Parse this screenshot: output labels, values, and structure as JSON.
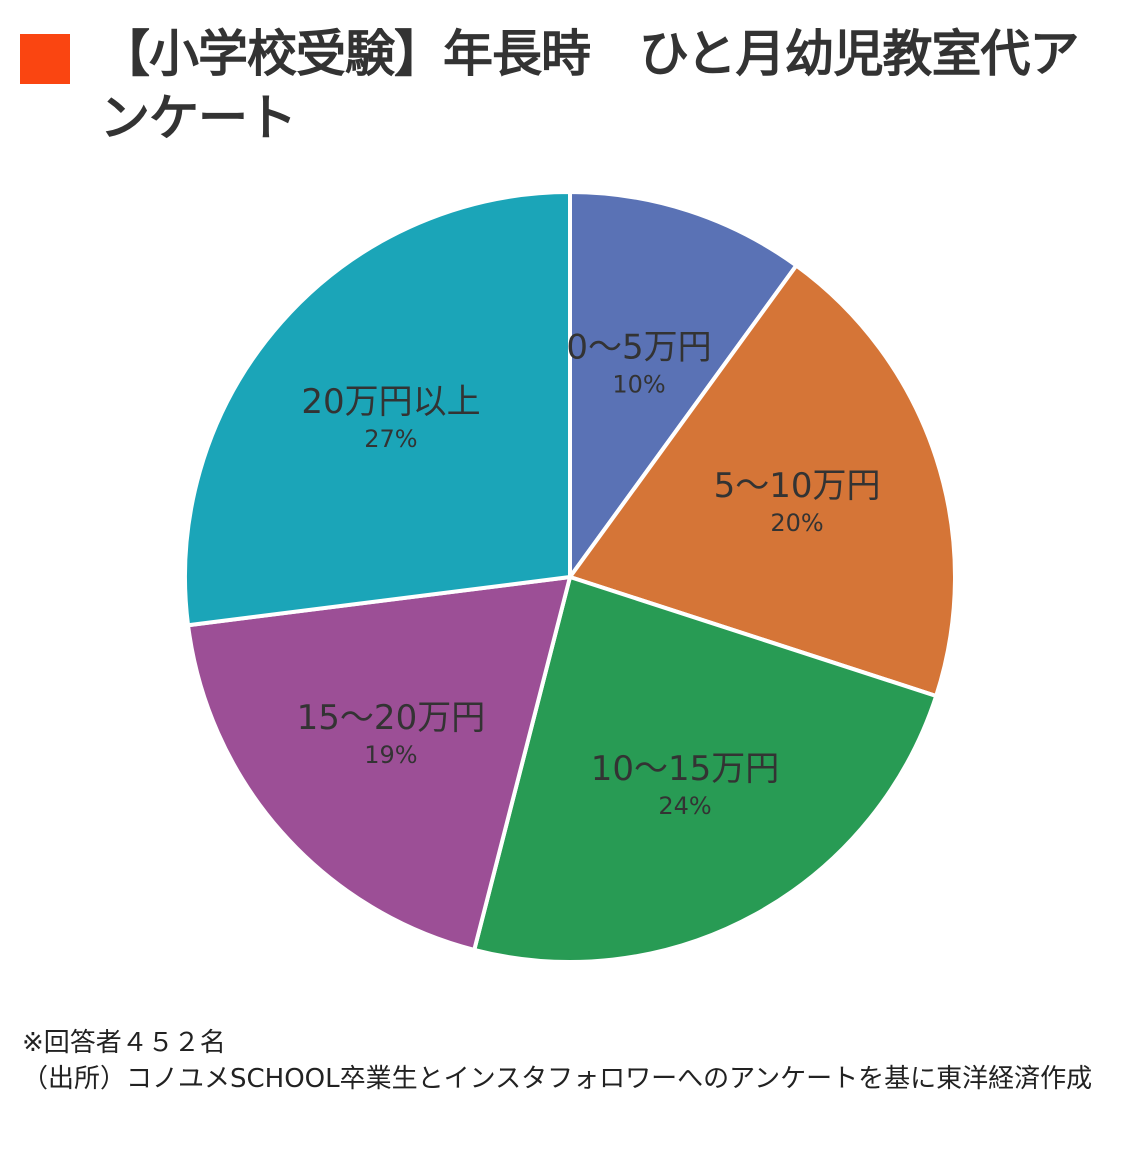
{
  "title": {
    "marker_color": "#fa4511",
    "text": "【小学校受験】年長時　ひと月幼児教室代アンケート"
  },
  "chart_data": {
    "type": "pie",
    "title": "【小学校受験】年長時　ひと月幼児教室代アンケート",
    "categories": [
      "0〜5万円",
      "5〜10万円",
      "10〜15万円",
      "15〜20万円",
      "20万円以上"
    ],
    "values": [
      10,
      20,
      24,
      19,
      27
    ],
    "unit": "%",
    "colors": [
      "#5a72b5",
      "#d57537",
      "#289b54",
      "#9c4f96",
      "#1ba5b8"
    ],
    "start_angle_deg": 0,
    "direction": "clockwise",
    "slice_labels": [
      {
        "name": "0〜5万円",
        "pct": "10%"
      },
      {
        "name": "5〜10万円",
        "pct": "20%"
      },
      {
        "name": "10〜15万円",
        "pct": "24%"
      },
      {
        "name": "15〜20万円",
        "pct": "19%"
      },
      {
        "name": "20万円以上",
        "pct": "27%"
      }
    ],
    "legend": "none"
  },
  "notes": {
    "respondents": "※回答者４５２名",
    "source": "（出所）コノユメSCHOOL卒業生とインスタフォロワーへのアンケートを基に東洋経済作成"
  }
}
